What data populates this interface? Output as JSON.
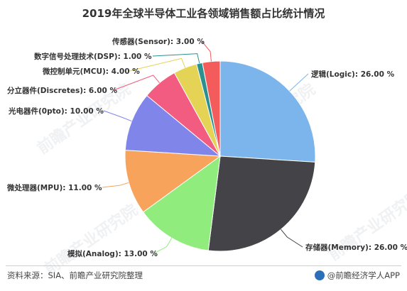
{
  "title": "2019年全球半导体工业各领域销售额占比统计情况",
  "chart_data": {
    "type": "pie",
    "title": "2019年全球半导体工业各领域销售额占比统计情况",
    "start_angle_deg": 0,
    "direction": "clockwise",
    "slices": [
      {
        "name": "逻辑(Logic)",
        "value": 26.0,
        "label": "逻辑(Logic): 26.00 %",
        "color": "#7cb5ec"
      },
      {
        "name": "存储器(Memory)",
        "value": 26.0,
        "label": "存储器(Memory): 26.00 %",
        "color": "#434348"
      },
      {
        "name": "模拟(Analog)",
        "value": 13.0,
        "label": "模拟(Analog): 13.00 %",
        "color": "#90ed7d"
      },
      {
        "name": "微处理器(MPU)",
        "value": 11.0,
        "label": "微处理器(MPU): 11.00 %",
        "color": "#f7a35c"
      },
      {
        "name": "光电器件(0pto)",
        "value": 10.0,
        "label": "光电器件(0pto): 10.00 %",
        "color": "#8085e9"
      },
      {
        "name": "分立器件(Discretes)",
        "value": 6.0,
        "label": "分立器件(Discretes): 6.00 %",
        "color": "#f15c80"
      },
      {
        "name": "微控制单元(MCU)",
        "value": 4.0,
        "label": "微控制单元(MCU): 4.00 %",
        "color": "#e4d354"
      },
      {
        "name": "数字信号处理技术(DSP)",
        "value": 1.0,
        "label": "数字信号处理技术(DSP): 1.00 %",
        "color": "#2b908f"
      },
      {
        "name": "传感器(Sensor)",
        "value": 3.0,
        "label": "传感器(Sensor): 3.00 %",
        "color": "#f45b5b"
      }
    ]
  },
  "footer": {
    "source": "资料来源：SIA、前瞻产业研究院整理",
    "credit": "@前瞻经济学人APP"
  },
  "watermark": "前瞻产业研究院"
}
